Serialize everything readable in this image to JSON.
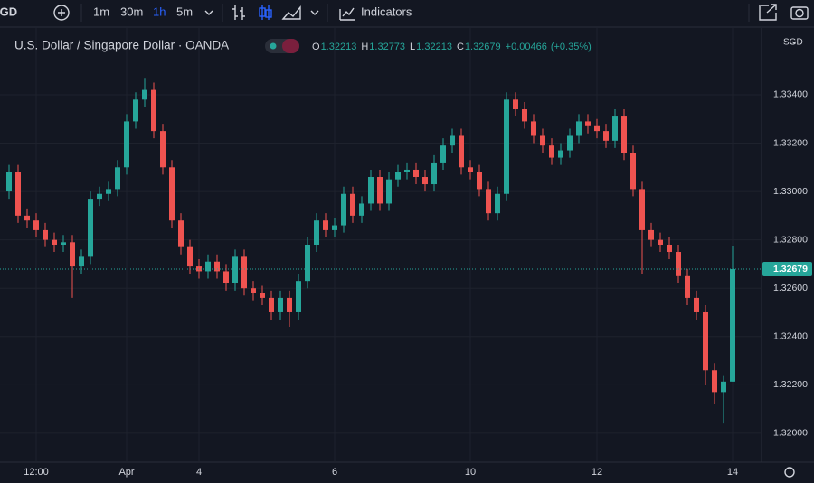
{
  "toolbar": {
    "symbol": "SGD",
    "intervals": [
      "1m",
      "30m",
      "1h",
      "5m"
    ],
    "active_interval": "1h",
    "indicators": "Indicators"
  },
  "chart_data": {
    "type": "candlestick",
    "title": "U.S. Dollar / Singapore Dollar · OANDA",
    "currency": "SGD",
    "ohlc_legend": [
      {
        "key": "O",
        "value": "1.32213"
      },
      {
        "key": "H",
        "value": "1.32773"
      },
      {
        "key": "L",
        "value": "1.32213"
      },
      {
        "key": "C",
        "value": "1.32679"
      }
    ],
    "change": "+0.00466",
    "change_pct": "(+0.35%)",
    "current_price": {
      "value": 1.32679,
      "label": "1.32679"
    },
    "up_color": "#26a69a",
    "down_color": "#ef5350",
    "categories": [
      null,
      null,
      null,
      "12:00",
      null,
      null,
      null,
      null,
      null,
      null,
      null,
      null,
      null,
      "Apr",
      null,
      null,
      null,
      null,
      null,
      null,
      null,
      "4",
      null,
      null,
      null,
      null,
      null,
      null,
      null,
      null,
      null,
      null,
      null,
      null,
      null,
      null,
      "6",
      null,
      null,
      null,
      null,
      null,
      null,
      null,
      null,
      null,
      null,
      null,
      null,
      null,
      null,
      "10",
      null,
      null,
      null,
      null,
      null,
      null,
      null,
      null,
      null,
      null,
      null,
      null,
      null,
      "12",
      null,
      null,
      null,
      null,
      null,
      null,
      null,
      null,
      null,
      null,
      null,
      null,
      null,
      null,
      "14"
    ],
    "open": [
      1.33,
      1.3308,
      1.329,
      1.3288,
      1.3284,
      1.328,
      1.3278,
      1.3279,
      1.3269,
      1.3273,
      1.3297,
      1.3299,
      1.3301,
      1.331,
      1.3329,
      1.3338,
      1.3342,
      1.3325,
      1.331,
      1.3288,
      1.3277,
      1.3269,
      1.3267,
      1.3271,
      1.3267,
      1.3262,
      1.3273,
      1.326,
      1.3258,
      1.3256,
      1.325,
      1.3256,
      1.325,
      1.3263,
      1.3278,
      1.3288,
      1.3284,
      1.3286,
      1.3299,
      1.329,
      1.3295,
      1.3306,
      1.3295,
      1.3305,
      1.3308,
      1.3309,
      1.3306,
      1.3303,
      1.3312,
      1.3319,
      1.3323,
      1.331,
      1.3308,
      1.3301,
      1.3291,
      1.3299,
      1.3338,
      1.3334,
      1.3329,
      1.3323,
      1.3319,
      1.3314,
      1.3317,
      1.3323,
      1.3329,
      1.3327,
      1.3325,
      1.3321,
      1.3331,
      1.3316,
      1.3301,
      1.3284,
      1.328,
      1.3278,
      1.3275,
      1.3265,
      1.3256,
      1.325,
      1.3226,
      1.3217,
      1.32213
    ],
    "high": [
      1.3311,
      1.3311,
      1.3293,
      1.3291,
      1.3287,
      1.3283,
      1.3282,
      1.3282,
      1.3276,
      1.33,
      1.3302,
      1.3304,
      1.3313,
      1.3332,
      1.3341,
      1.3347,
      1.3345,
      1.3328,
      1.3313,
      1.3291,
      1.328,
      1.3272,
      1.3274,
      1.3274,
      1.327,
      1.3276,
      1.3276,
      1.3263,
      1.3261,
      1.3259,
      1.3259,
      1.3259,
      1.3266,
      1.3281,
      1.3291,
      1.3291,
      1.3289,
      1.3302,
      1.3302,
      1.3298,
      1.3309,
      1.3309,
      1.3308,
      1.3311,
      1.3312,
      1.3312,
      1.3309,
      1.3315,
      1.3322,
      1.3326,
      1.3326,
      1.3313,
      1.3311,
      1.3304,
      1.3302,
      1.3341,
      1.3341,
      1.3337,
      1.3332,
      1.3326,
      1.3322,
      1.332,
      1.3326,
      1.3332,
      1.3332,
      1.333,
      1.3328,
      1.3334,
      1.3334,
      1.3319,
      1.3304,
      1.3287,
      1.3283,
      1.3281,
      1.3278,
      1.3268,
      1.3259,
      1.3253,
      1.3229,
      1.3224,
      1.32773
    ],
    "low": [
      1.3297,
      1.3287,
      1.3285,
      1.3281,
      1.3277,
      1.3275,
      1.3275,
      1.3256,
      1.3266,
      1.327,
      1.3294,
      1.3296,
      1.3298,
      1.3307,
      1.3326,
      1.3335,
      1.3322,
      1.3307,
      1.3285,
      1.3274,
      1.3266,
      1.3264,
      1.3264,
      1.3264,
      1.3259,
      1.3259,
      1.3257,
      1.3255,
      1.3253,
      1.3247,
      1.3247,
      1.3244,
      1.3247,
      1.326,
      1.3275,
      1.3281,
      1.3281,
      1.3283,
      1.3287,
      1.3287,
      1.3292,
      1.3292,
      1.3292,
      1.3302,
      1.3305,
      1.3303,
      1.33,
      1.33,
      1.3309,
      1.3316,
      1.3307,
      1.3305,
      1.3298,
      1.3288,
      1.3288,
      1.3296,
      1.3331,
      1.3326,
      1.332,
      1.3316,
      1.3311,
      1.3311,
      1.3314,
      1.332,
      1.3324,
      1.3322,
      1.3318,
      1.3318,
      1.3313,
      1.3298,
      1.3266,
      1.3277,
      1.3275,
      1.3272,
      1.3262,
      1.3253,
      1.3247,
      1.322,
      1.3212,
      1.3204,
      1.32213
    ],
    "close": [
      1.3308,
      1.329,
      1.3288,
      1.3284,
      1.328,
      1.3278,
      1.3279,
      1.3269,
      1.3273,
      1.3297,
      1.3299,
      1.3301,
      1.331,
      1.3329,
      1.3338,
      1.3342,
      1.3325,
      1.331,
      1.3288,
      1.3277,
      1.3269,
      1.3267,
      1.3271,
      1.3267,
      1.3262,
      1.3273,
      1.326,
      1.3258,
      1.3256,
      1.325,
      1.3256,
      1.325,
      1.3263,
      1.3278,
      1.3288,
      1.3284,
      1.3286,
      1.3299,
      1.329,
      1.3295,
      1.3306,
      1.3295,
      1.3305,
      1.3308,
      1.3309,
      1.3306,
      1.3303,
      1.3312,
      1.3319,
      1.3323,
      1.331,
      1.3308,
      1.3301,
      1.3291,
      1.3299,
      1.3338,
      1.3334,
      1.3329,
      1.3323,
      1.3319,
      1.3314,
      1.3317,
      1.3323,
      1.3329,
      1.3327,
      1.3325,
      1.3321,
      1.3331,
      1.3316,
      1.3301,
      1.3284,
      1.328,
      1.3278,
      1.3275,
      1.3265,
      1.3256,
      1.325,
      1.3226,
      1.3217,
      1.32213,
      1.32679
    ],
    "ylim": [
      1.31895,
      1.3365
    ],
    "yticks": [
      {
        "value": 1.32,
        "label": "1.32000"
      },
      {
        "value": 1.322,
        "label": "1.32200"
      },
      {
        "value": 1.324,
        "label": "1.32400"
      },
      {
        "value": 1.326,
        "label": "1.32600"
      },
      {
        "value": 1.328,
        "label": "1.32800"
      },
      {
        "value": 1.33,
        "label": "1.33000"
      },
      {
        "value": 1.332,
        "label": "1.33200"
      },
      {
        "value": 1.334,
        "label": "1.33400"
      }
    ],
    "grid": true
  }
}
